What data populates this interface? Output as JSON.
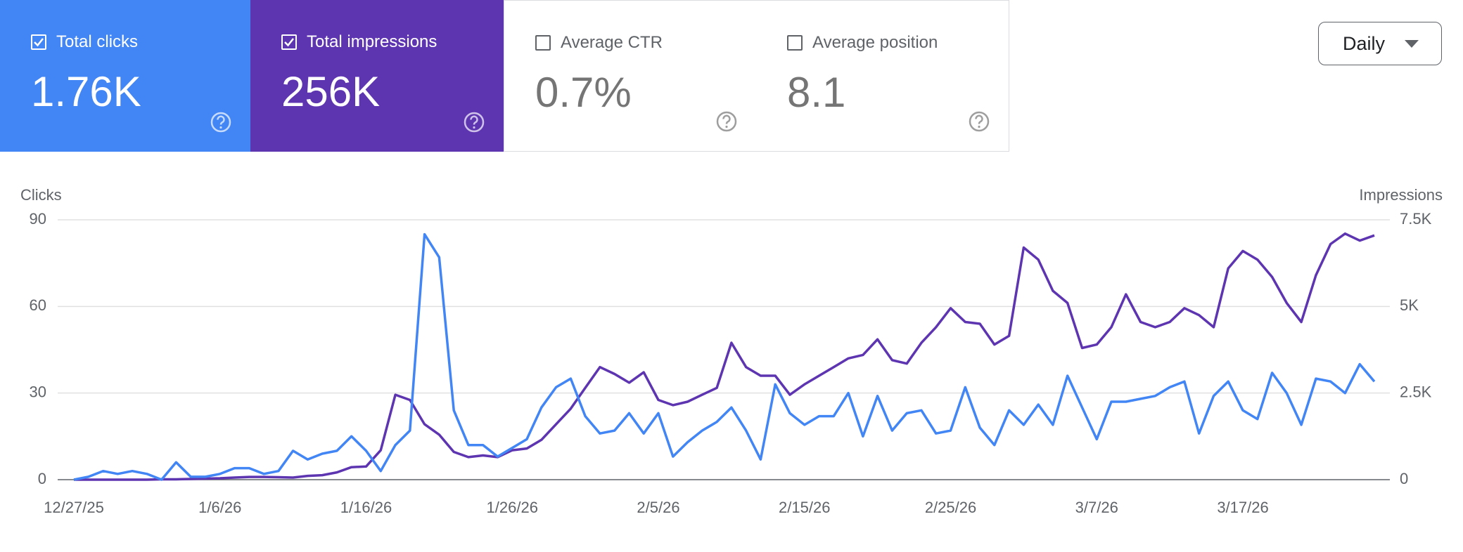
{
  "cards": [
    {
      "label": "Total clicks",
      "value": "1.76K",
      "checked": true,
      "color": "#4285f4"
    },
    {
      "label": "Total impressions",
      "value": "256K",
      "checked": true,
      "color": "#5e35b1"
    },
    {
      "label": "Average CTR",
      "value": "0.7%",
      "checked": false
    },
    {
      "label": "Average position",
      "value": "8.1",
      "checked": false
    }
  ],
  "dropdown": "Daily",
  "chart_data": {
    "type": "line",
    "y_label": "Clicks",
    "y2_label": "Impressions",
    "categories": [
      "12/27/25",
      null,
      null,
      null,
      null,
      null,
      null,
      null,
      null,
      null,
      "1/6/26",
      null,
      null,
      null,
      null,
      null,
      null,
      null,
      null,
      null,
      "1/16/26",
      null,
      null,
      null,
      null,
      null,
      null,
      null,
      null,
      null,
      "1/26/26",
      null,
      null,
      null,
      null,
      null,
      null,
      null,
      null,
      null,
      "2/5/26",
      null,
      null,
      null,
      null,
      null,
      null,
      null,
      null,
      null,
      "2/15/26",
      null,
      null,
      null,
      null,
      null,
      null,
      null,
      null,
      null,
      "2/25/26",
      null,
      null,
      null,
      null,
      null,
      null,
      null,
      null,
      null,
      "3/7/26",
      null,
      null,
      null,
      null,
      null,
      null,
      null,
      null,
      null,
      "3/17/26",
      null,
      null,
      null,
      null,
      null,
      null,
      null,
      null,
      null
    ],
    "series": [
      {
        "name": "Clicks",
        "color": "#4285f4",
        "axis": "y",
        "values": [
          0,
          1,
          3,
          2,
          3,
          2,
          0,
          6,
          1,
          1,
          2,
          4,
          4,
          2,
          3,
          10,
          7,
          9,
          10,
          15,
          10,
          3,
          12,
          17,
          85,
          77,
          24,
          12,
          12,
          8,
          11,
          14,
          25,
          32,
          35,
          22,
          16,
          17,
          23,
          16,
          23,
          8,
          13,
          17,
          20,
          25,
          17,
          7,
          33,
          23,
          19,
          22,
          22,
          30,
          15,
          29,
          17,
          23,
          24,
          16,
          17,
          32,
          18,
          12,
          24,
          19,
          26,
          19,
          36,
          25,
          14,
          27,
          27,
          28,
          29,
          32,
          34,
          16,
          29,
          34,
          24,
          21,
          37,
          30,
          19,
          35,
          34,
          30,
          40,
          34
        ]
      },
      {
        "name": "Impressions",
        "color": "#5e35b1",
        "axis": "y2",
        "values": [
          0,
          0,
          0,
          0,
          0,
          0,
          10,
          10,
          20,
          30,
          40,
          60,
          80,
          80,
          70,
          60,
          110,
          130,
          210,
          360,
          380,
          850,
          2450,
          2300,
          1600,
          1300,
          800,
          650,
          700,
          650,
          850,
          900,
          1150,
          1600,
          2050,
          2650,
          3250,
          3050,
          2800,
          3100,
          2300,
          2150,
          2250,
          2450,
          2650,
          3950,
          3250,
          3000,
          3000,
          2450,
          2750,
          3000,
          3250,
          3500,
          3600,
          4050,
          3450,
          3350,
          3950,
          4400,
          4950,
          4550,
          4500,
          3900,
          4150,
          6700,
          6350,
          5450,
          5100,
          3800,
          3900,
          4400,
          5350,
          4550,
          4400,
          4550,
          4950,
          4750,
          4400,
          6100,
          6600,
          6350,
          5850,
          5100,
          4550,
          5900,
          6800,
          7100,
          6900,
          7050
        ]
      }
    ],
    "ylim": [
      0,
      90
    ],
    "yticks": [
      0,
      30,
      60,
      90
    ],
    "y2lim": [
      0,
      7500
    ],
    "y2ticks": [
      0,
      {
        "value": 2500,
        "label": "2.5K"
      },
      {
        "value": 5000,
        "label": "5K"
      },
      {
        "value": 7500,
        "label": "7.5K"
      }
    ],
    "grid": true
  }
}
